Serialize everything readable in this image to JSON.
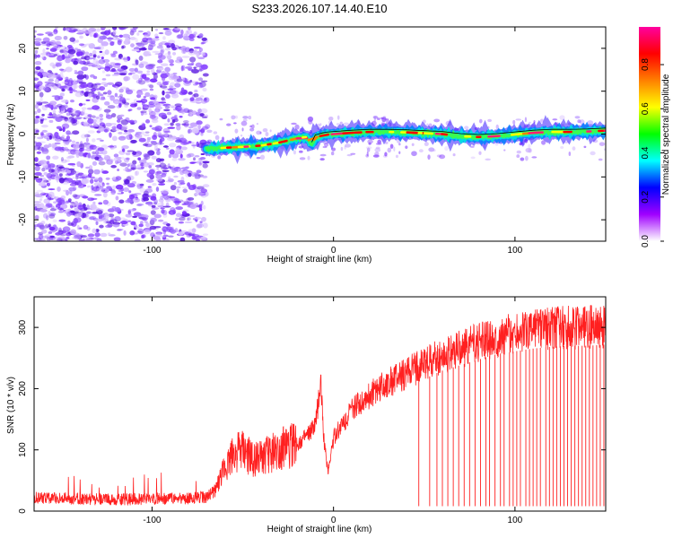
{
  "title": "S233.2026.107.14.40.E10",
  "chart_data": [
    {
      "type": "heatmap",
      "xlabel": "Height of straight line (km)",
      "ylabel": "Frequency (Hz)",
      "xlim": [
        -165,
        150
      ],
      "ylim": [
        -25,
        25
      ],
      "xticks": [
        -100,
        0,
        100
      ],
      "yticks": [
        -20,
        -10,
        0,
        10,
        20
      ],
      "noise_region_x": [
        -165,
        -70
      ],
      "ridge": {
        "x": [
          -70,
          -60,
          -50,
          -40,
          -30,
          -20,
          -15,
          -12,
          -10,
          -5,
          0,
          10,
          20,
          30,
          40,
          50,
          60,
          70,
          80,
          90,
          100,
          110,
          120,
          130,
          140,
          150
        ],
        "y": [
          -3.5,
          -3.2,
          -3.0,
          -2.7,
          -2.0,
          -1.0,
          -0.7,
          -2.5,
          -0.8,
          -0.2,
          0,
          0.3,
          0.5,
          0.5,
          0.4,
          0.2,
          0,
          -0.5,
          -0.7,
          -0.5,
          -0.1,
          0.3,
          0.5,
          0.5,
          0.6,
          0.8
        ]
      },
      "colorbar": {
        "label": "Normalized spectral amplitude",
        "range": [
          0,
          1
        ],
        "ticks": [
          "0.0",
          "0.2",
          "0.4",
          "0.6",
          "0.8"
        ],
        "colors": [
          "#ffffff",
          "#a000ff",
          "#0000ff",
          "#00ffff",
          "#00ff00",
          "#ffff00",
          "#ff8000",
          "#ff0000",
          "#ff00a0"
        ]
      }
    },
    {
      "type": "line",
      "xlabel": "Height of straight line (km)",
      "ylabel": "SNR (10 * v/v)",
      "xlim": [
        -165,
        150
      ],
      "ylim": [
        0,
        350
      ],
      "xticks": [
        -100,
        0,
        100
      ],
      "yticks": [
        0,
        100,
        200,
        300
      ],
      "color": "#ff2020",
      "series": [
        {
          "x": [
            -165,
            -140,
            -120,
            -100,
            -80,
            -70,
            -65,
            -60,
            -55,
            -50,
            -45,
            -40,
            -35,
            -30,
            -25,
            -20,
            -15,
            -10,
            -7,
            -5,
            -3,
            0,
            10,
            20,
            30,
            40,
            50,
            60,
            70,
            80,
            90,
            100,
            110,
            120,
            130,
            140,
            150
          ],
          "values": [
            22,
            20,
            19,
            20,
            21,
            23,
            35,
            70,
            95,
            100,
            85,
            85,
            95,
            100,
            105,
            110,
            120,
            140,
            210,
            105,
            65,
            120,
            165,
            190,
            210,
            225,
            240,
            255,
            265,
            275,
            285,
            290,
            295,
            298,
            300,
            300,
            302
          ]
        }
      ],
      "dropouts": [
        47,
        53,
        57,
        60,
        63,
        66,
        69,
        72,
        75,
        78,
        81,
        84,
        86,
        89,
        92,
        94,
        97,
        99,
        101,
        103,
        106,
        108,
        110,
        112,
        114,
        117,
        119,
        121,
        123,
        125,
        127,
        129,
        131,
        133,
        135,
        137,
        139,
        141,
        143,
        145,
        147,
        149
      ]
    }
  ]
}
